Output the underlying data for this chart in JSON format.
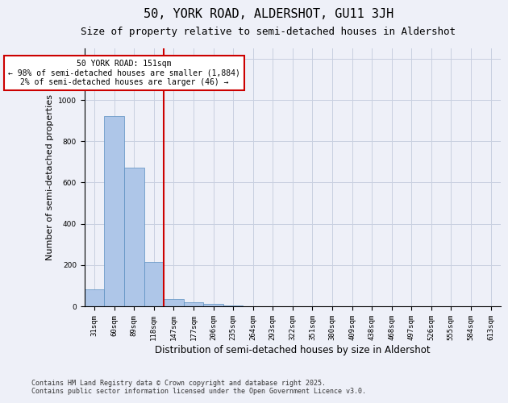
{
  "title": "50, YORK ROAD, ALDERSHOT, GU11 3JH",
  "subtitle": "Size of property relative to semi-detached houses in Aldershot",
  "xlabel": "Distribution of semi-detached houses by size in Aldershot",
  "ylabel": "Number of semi-detached properties",
  "categories": [
    "31sqm",
    "60sqm",
    "89sqm",
    "118sqm",
    "147sqm",
    "177sqm",
    "206sqm",
    "235sqm",
    "264sqm",
    "293sqm",
    "322sqm",
    "351sqm",
    "380sqm",
    "409sqm",
    "438sqm",
    "468sqm",
    "497sqm",
    "526sqm",
    "555sqm",
    "584sqm",
    "613sqm"
  ],
  "values": [
    82,
    920,
    670,
    215,
    35,
    18,
    10,
    2,
    0,
    0,
    0,
    0,
    0,
    0,
    0,
    0,
    0,
    0,
    0,
    0,
    0
  ],
  "bar_color": "#aec6e8",
  "bar_edge_color": "#5a8fc0",
  "property_line_color": "#cc0000",
  "annotation_text": "50 YORK ROAD: 151sqm\n← 98% of semi-detached houses are smaller (1,884)\n2% of semi-detached houses are larger (46) →",
  "annotation_box_color": "#cc0000",
  "annotation_text_color": "#000000",
  "ylim": [
    0,
    1250
  ],
  "yticks": [
    0,
    200,
    400,
    600,
    800,
    1000,
    1200
  ],
  "grid_color": "#c8d0e0",
  "background_color": "#eef0f8",
  "footer_line1": "Contains HM Land Registry data © Crown copyright and database right 2025.",
  "footer_line2": "Contains public sector information licensed under the Open Government Licence v3.0.",
  "title_fontsize": 11,
  "subtitle_fontsize": 9,
  "xlabel_fontsize": 8.5,
  "ylabel_fontsize": 8,
  "tick_fontsize": 6.5,
  "annotation_fontsize": 7,
  "footer_fontsize": 6
}
